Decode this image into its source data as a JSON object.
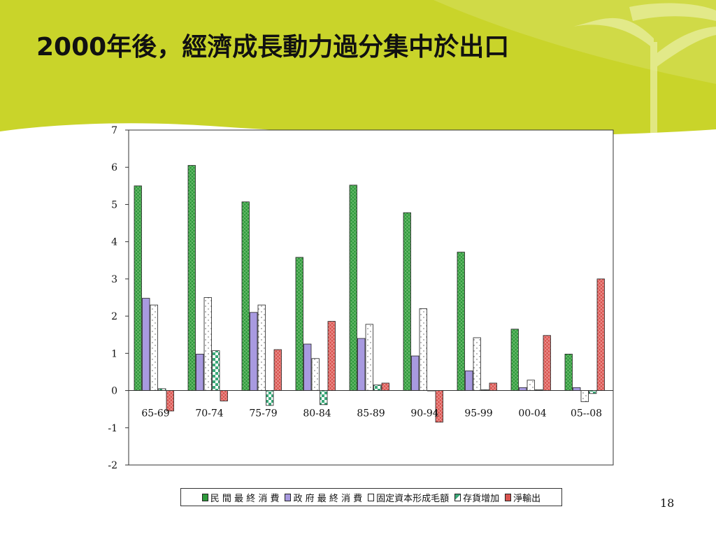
{
  "slide": {
    "title": "2000年後，經濟成長動力過分集中於出口",
    "page_number": "18"
  },
  "colors": {
    "banner": "#c9d42a",
    "banner_light": "#dde57a",
    "series": [
      "#2e9a3c",
      "#a89ae0",
      "#ffffff",
      "#3aa878",
      "#d9534f"
    ]
  },
  "chart_data": {
    "type": "bar",
    "categories": [
      "65-69",
      "70-74",
      "75-79",
      "80-84",
      "85-89",
      "90-94",
      "95-99",
      "00-04",
      "05--08"
    ],
    "series": [
      {
        "name": "民 間 最 終 消 費",
        "values": [
          5.5,
          6.05,
          5.07,
          3.58,
          5.52,
          4.78,
          3.72,
          1.65,
          0.98
        ]
      },
      {
        "name": "政 府 最 終 消 費",
        "values": [
          2.48,
          0.98,
          2.1,
          1.25,
          1.4,
          0.93,
          0.53,
          0.08,
          0.08
        ]
      },
      {
        "name": "固定資本形成毛額",
        "values": [
          2.3,
          2.5,
          2.3,
          0.86,
          1.78,
          2.2,
          1.42,
          0.28,
          -0.3
        ]
      },
      {
        "name": "存貨增加",
        "values": [
          0.05,
          1.07,
          -0.4,
          -0.38,
          0.15,
          0.0,
          0.02,
          0.02,
          -0.08
        ]
      },
      {
        "name": "淨輸出",
        "values": [
          -0.55,
          -0.28,
          1.1,
          1.86,
          0.2,
          -0.85,
          0.2,
          1.48,
          3.0
        ]
      }
    ],
    "ylim": [
      -2,
      7
    ],
    "yticks": [
      "-2",
      "-1",
      "0",
      "1",
      "2",
      "3",
      "4",
      "5",
      "6",
      "7"
    ],
    "grid": false,
    "legend_position": "bottom"
  }
}
